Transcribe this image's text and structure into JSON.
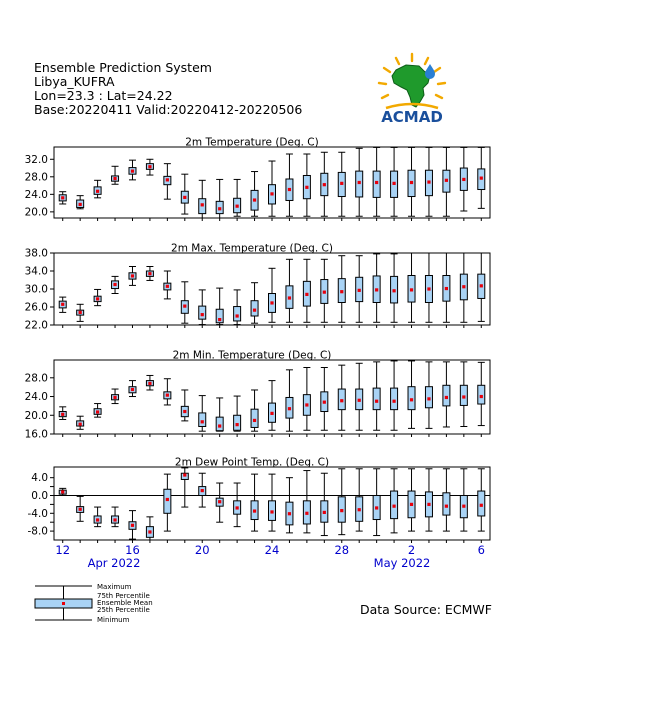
{
  "header": {
    "title": "Ensemble Prediction System",
    "location": "Libya_KUFRA",
    "coords": "Lon=23.3 : Lat=24.22",
    "dates": "Base:20220411 Valid:20220412-20220506"
  },
  "logo": {
    "text": "ACMAD"
  },
  "source": "Data Source: ECMWF",
  "legend": {
    "max": "Maximum",
    "p75": "75th Percentile",
    "mean": "Ensemble Mean",
    "p25": "25th Percentile",
    "min": "Minimum"
  },
  "x_axis": {
    "ticks": [
      "12",
      "16",
      "20",
      "24",
      "28",
      "2",
      "6"
    ],
    "months": [
      "Apr 2022",
      "May 2022"
    ]
  },
  "colors": {
    "box": "#a9d3f5",
    "mean": "#e8000b",
    "axis": "#0000cc"
  },
  "chart_data": [
    {
      "type": "box",
      "title": "2m Temperature (Deg. C)",
      "ylim": [
        18.6,
        34.8
      ],
      "yticks": [
        "32.0",
        "28.0",
        "24.0",
        "20.0"
      ],
      "ytick_values": [
        32,
        28,
        24,
        20
      ],
      "x": [
        "12-Apr",
        "13-Apr",
        "14-Apr",
        "15-Apr",
        "16-Apr",
        "17-Apr",
        "18-Apr",
        "19-Apr",
        "20-Apr",
        "21-Apr",
        "22-Apr",
        "23-Apr",
        "24-Apr",
        "25-Apr",
        "26-Apr",
        "27-Apr",
        "28-Apr",
        "29-Apr",
        "30-Apr",
        "1-May",
        "2-May",
        "3-May",
        "4-May",
        "5-May",
        "6-May"
      ],
      "min": [
        21.8,
        20.7,
        23.2,
        26.3,
        27.3,
        28.4,
        22.9,
        19.5,
        18.6,
        18.6,
        19.0,
        19.0,
        19.0,
        19.0,
        19.0,
        19.0,
        19.0,
        19.0,
        19.0,
        19.0,
        19.0,
        19.0,
        19.0,
        20.2,
        20.8
      ],
      "p25": [
        22.5,
        21.0,
        24.0,
        27.0,
        28.6,
        29.7,
        26.2,
        22.0,
        19.6,
        19.6,
        19.8,
        20.4,
        21.8,
        22.6,
        23.0,
        23.7,
        23.5,
        23.4,
        23.3,
        23.3,
        23.5,
        23.7,
        24.5,
        24.9,
        25.1
      ],
      "mean": [
        23.2,
        21.7,
        24.7,
        27.6,
        29.3,
        30.3,
        27.3,
        23.3,
        21.6,
        20.7,
        21.3,
        22.7,
        24.1,
        25.1,
        25.6,
        26.2,
        26.5,
        26.7,
        26.7,
        26.5,
        26.7,
        26.8,
        27.2,
        27.4,
        27.7
      ],
      "p75": [
        23.9,
        22.7,
        25.7,
        28.2,
        30.1,
        31.0,
        28.1,
        24.7,
        23.0,
        22.4,
        23.1,
        24.9,
        26.2,
        27.5,
        28.3,
        28.8,
        29.0,
        29.3,
        29.3,
        29.3,
        29.5,
        29.5,
        29.5,
        30.0,
        29.8
      ],
      "max": [
        24.6,
        23.7,
        27.2,
        30.4,
        31.8,
        32.0,
        31.0,
        28.6,
        27.2,
        27.4,
        27.4,
        29.2,
        31.6,
        33.2,
        33.2,
        33.6,
        33.6,
        34.5,
        34.7,
        34.7,
        34.7,
        34.7,
        34.7,
        34.7,
        34.7
      ]
    },
    {
      "type": "box",
      "title": "2m Max. Temperature (Deg. C)",
      "ylim": [
        22.0,
        38.0
      ],
      "yticks": [
        "38.0",
        "34.0",
        "30.0",
        "26.0",
        "22.0"
      ],
      "ytick_values": [
        38,
        34,
        30,
        26,
        22
      ],
      "x": [
        "12-Apr",
        "13-Apr",
        "14-Apr",
        "15-Apr",
        "16-Apr",
        "17-Apr",
        "18-Apr",
        "19-Apr",
        "20-Apr",
        "21-Apr",
        "22-Apr",
        "23-Apr",
        "24-Apr",
        "25-Apr",
        "26-Apr",
        "27-Apr",
        "28-Apr",
        "29-Apr",
        "30-Apr",
        "1-May",
        "2-May",
        "3-May",
        "4-May",
        "5-May",
        "6-May"
      ],
      "min": [
        24.8,
        22.8,
        26.3,
        29.0,
        30.8,
        31.9,
        27.8,
        22.4,
        22.1,
        22.1,
        22.1,
        22.4,
        22.6,
        22.6,
        22.6,
        22.6,
        22.6,
        22.6,
        22.6,
        22.6,
        22.6,
        22.6,
        22.6,
        22.6,
        22.8
      ],
      "p25": [
        25.8,
        24.2,
        27.2,
        30.1,
        32.2,
        32.8,
        29.8,
        24.6,
        23.3,
        22.5,
        22.9,
        24.0,
        24.8,
        25.7,
        26.2,
        26.8,
        27.0,
        27.2,
        27.0,
        26.9,
        27.1,
        27.0,
        27.3,
        27.6,
        27.9
      ],
      "mean": [
        26.6,
        24.8,
        27.8,
        31.0,
        32.9,
        33.4,
        30.6,
        26.2,
        24.3,
        23.2,
        24.0,
        25.3,
        26.9,
        28.0,
        28.8,
        29.3,
        29.4,
        29.7,
        29.8,
        29.6,
        29.8,
        30.0,
        30.1,
        30.5,
        30.7
      ],
      "p75": [
        27.3,
        25.3,
        28.4,
        31.8,
        33.6,
        34.0,
        31.3,
        27.4,
        26.2,
        25.5,
        26.1,
        27.4,
        29.0,
        30.7,
        31.7,
        32.1,
        32.3,
        32.6,
        32.9,
        32.8,
        33.0,
        33.0,
        33.0,
        33.3,
        33.3
      ],
      "max": [
        28.2,
        26.6,
        29.9,
        32.8,
        35.0,
        35.0,
        34.0,
        31.6,
        29.8,
        30.2,
        29.8,
        31.4,
        34.6,
        36.6,
        36.6,
        36.6,
        37.4,
        37.4,
        37.8,
        37.8,
        38.0,
        38.0,
        38.0,
        38.0,
        38.0
      ]
    },
    {
      "type": "box",
      "title": "2m Min. Temperature (Deg. C)",
      "ylim": [
        16.0,
        31.8
      ],
      "yticks": [
        "28.0",
        "24.0",
        "20.0",
        "16.0"
      ],
      "ytick_values": [
        28,
        24,
        20,
        16
      ],
      "x": [
        "12-Apr",
        "13-Apr",
        "14-Apr",
        "15-Apr",
        "16-Apr",
        "17-Apr",
        "18-Apr",
        "19-Apr",
        "20-Apr",
        "21-Apr",
        "22-Apr",
        "23-Apr",
        "24-Apr",
        "25-Apr",
        "26-Apr",
        "27-Apr",
        "28-Apr",
        "29-Apr",
        "30-Apr",
        "1-May",
        "2-May",
        "3-May",
        "4-May",
        "5-May",
        "6-May"
      ],
      "min": [
        19.1,
        17.0,
        19.6,
        22.5,
        24.0,
        25.4,
        22.2,
        18.8,
        16.6,
        16.6,
        16.6,
        16.6,
        16.8,
        16.6,
        16.8,
        16.8,
        16.8,
        16.8,
        16.8,
        16.8,
        17.2,
        17.2,
        17.5,
        17.6,
        17.8
      ],
      "p25": [
        19.7,
        17.7,
        20.2,
        23.3,
        24.8,
        26.3,
        23.5,
        19.7,
        17.6,
        16.7,
        16.8,
        17.4,
        18.5,
        19.4,
        20.0,
        20.8,
        21.2,
        21.2,
        21.2,
        21.2,
        21.2,
        21.6,
        22.0,
        22.1,
        22.4
      ],
      "mean": [
        20.2,
        18.1,
        20.7,
        23.8,
        25.5,
        26.8,
        24.3,
        20.8,
        18.6,
        17.7,
        18.0,
        18.9,
        20.4,
        21.4,
        22.2,
        22.8,
        23.1,
        23.2,
        23.0,
        23.0,
        23.3,
        23.5,
        23.8,
        23.9,
        24.0
      ],
      "p75": [
        20.8,
        18.8,
        21.4,
        24.4,
        26.1,
        27.4,
        25.0,
        21.9,
        20.5,
        19.6,
        20.0,
        21.3,
        22.6,
        23.8,
        24.4,
        25.0,
        25.6,
        25.6,
        25.8,
        25.8,
        26.1,
        26.1,
        26.4,
        26.4,
        26.4
      ],
      "max": [
        21.8,
        19.8,
        22.5,
        25.6,
        27.4,
        28.5,
        27.8,
        25.4,
        24.2,
        23.7,
        24.1,
        25.4,
        27.4,
        29.7,
        30.2,
        30.2,
        30.7,
        31.1,
        31.4,
        31.6,
        31.6,
        31.4,
        31.4,
        31.4,
        31.3
      ]
    },
    {
      "type": "box",
      "title": "2m Dew Point Temp. (Deg. C)",
      "ylim": [
        -10.0,
        6.4
      ],
      "yticks": [
        "4.0",
        "0.0",
        "-4.0",
        "-8.0"
      ],
      "ytick_values": [
        4,
        2,
        0,
        -2,
        -4,
        -6,
        -8
      ],
      "ytick_labels": [
        "4.0",
        "",
        "0.0",
        "",
        "-4.0",
        "",
        "-8.0"
      ],
      "x": [
        "12-Apr",
        "13-Apr",
        "14-Apr",
        "15-Apr",
        "16-Apr",
        "17-Apr",
        "18-Apr",
        "19-Apr",
        "20-Apr",
        "21-Apr",
        "22-Apr",
        "23-Apr",
        "24-Apr",
        "25-Apr",
        "26-Apr",
        "27-Apr",
        "28-Apr",
        "29-Apr",
        "30-Apr",
        "1-May",
        "2-May",
        "3-May",
        "4-May",
        "5-May",
        "6-May"
      ],
      "min": [
        0.0,
        -5.8,
        -7.0,
        -7.0,
        -9.8,
        -10.0,
        -8.0,
        -2.6,
        -2.6,
        -6.0,
        -7.0,
        -8.0,
        -8.0,
        -8.4,
        -8.4,
        -9.0,
        -8.8,
        -8.0,
        -9.0,
        -8.4,
        -8.0,
        -8.0,
        -8.0,
        -8.0,
        -8.0
      ],
      "p25": [
        0.3,
        -3.8,
        -6.2,
        -6.2,
        -7.6,
        -9.4,
        -4.0,
        3.6,
        0.0,
        -2.4,
        -4.2,
        -5.4,
        -5.6,
        -6.6,
        -6.4,
        -6.0,
        -6.0,
        -5.8,
        -5.4,
        -5.2,
        -5.0,
        -4.8,
        -4.4,
        -5.0,
        -4.6
      ],
      "mean": [
        0.8,
        -3.1,
        -5.5,
        -5.5,
        -6.7,
        -8.2,
        -0.9,
        4.6,
        1.1,
        -1.4,
        -2.8,
        -3.5,
        -3.7,
        -4.1,
        -4.0,
        -3.8,
        -3.4,
        -3.2,
        -2.8,
        -2.4,
        -2.0,
        -2.0,
        -2.4,
        -2.4,
        -2.2
      ],
      "p75": [
        1.2,
        -2.5,
        -4.6,
        -4.6,
        -5.9,
        -7.0,
        1.4,
        5.0,
        2.0,
        -0.6,
        -1.2,
        -1.2,
        -1.2,
        -1.5,
        -1.2,
        -1.2,
        -0.3,
        -0.3,
        0.0,
        1.0,
        1.0,
        0.8,
        0.6,
        0.0,
        1.0
      ],
      "max": [
        1.6,
        -0.2,
        -2.6,
        -2.6,
        -3.4,
        -4.8,
        4.8,
        6.2,
        5.0,
        2.8,
        2.8,
        4.8,
        4.8,
        4.0,
        5.6,
        5.0,
        6.0,
        6.0,
        6.0,
        6.0,
        6.0,
        6.0,
        6.0,
        6.0,
        6.0
      ]
    }
  ]
}
